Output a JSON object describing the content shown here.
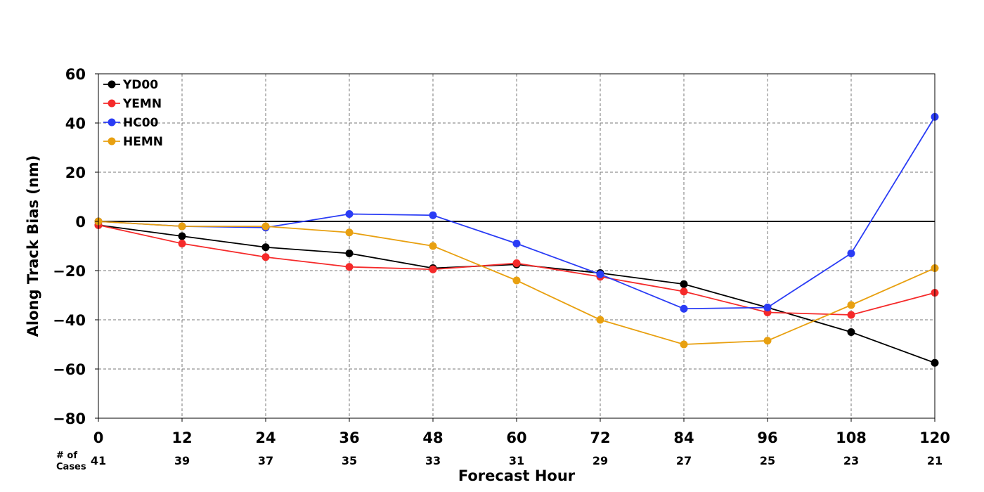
{
  "chart_data": {
    "type": "line",
    "xlabel": "Forecast Hour",
    "ylabel": "Along Track Bias (nm)",
    "x": [
      0,
      12,
      24,
      36,
      48,
      60,
      72,
      84,
      96,
      108,
      120
    ],
    "xlim": [
      0,
      120
    ],
    "ylim": [
      -80,
      60
    ],
    "yticks": [
      60,
      40,
      20,
      0,
      -20,
      -40,
      -60,
      -80
    ],
    "ytick_labels": [
      "60",
      "40",
      "20",
      "0",
      "−20",
      "−40",
      "−60",
      "−80"
    ],
    "grid": true,
    "zero_line": true,
    "legend_position": "top-left",
    "cases_label": [
      "# of",
      "Cases"
    ],
    "cases": [
      41,
      39,
      37,
      35,
      33,
      31,
      29,
      27,
      25,
      23,
      21
    ],
    "series": [
      {
        "name": "YD00",
        "color": "#000000",
        "values": [
          -1.5,
          -6,
          -10.5,
          -13,
          -19,
          -17.5,
          -21,
          -25.5,
          -35,
          -45,
          -57.5
        ]
      },
      {
        "name": "YEMN",
        "color": "#f52a2a",
        "values": [
          -1.5,
          -9,
          -14.5,
          -18.5,
          -19.5,
          -17,
          -22.5,
          -28.5,
          -37,
          -38,
          -29
        ]
      },
      {
        "name": "HC00",
        "color": "#2a3cf5",
        "values": [
          0,
          -2,
          -2.5,
          3,
          2.5,
          -9,
          -21.5,
          -35.5,
          -35,
          -13,
          42.5
        ]
      },
      {
        "name": "HEMN",
        "color": "#e8a010",
        "values": [
          0,
          -2,
          -2,
          -4.5,
          -10,
          -24,
          -40,
          -50,
          -48.5,
          -34,
          -19
        ]
      }
    ]
  }
}
